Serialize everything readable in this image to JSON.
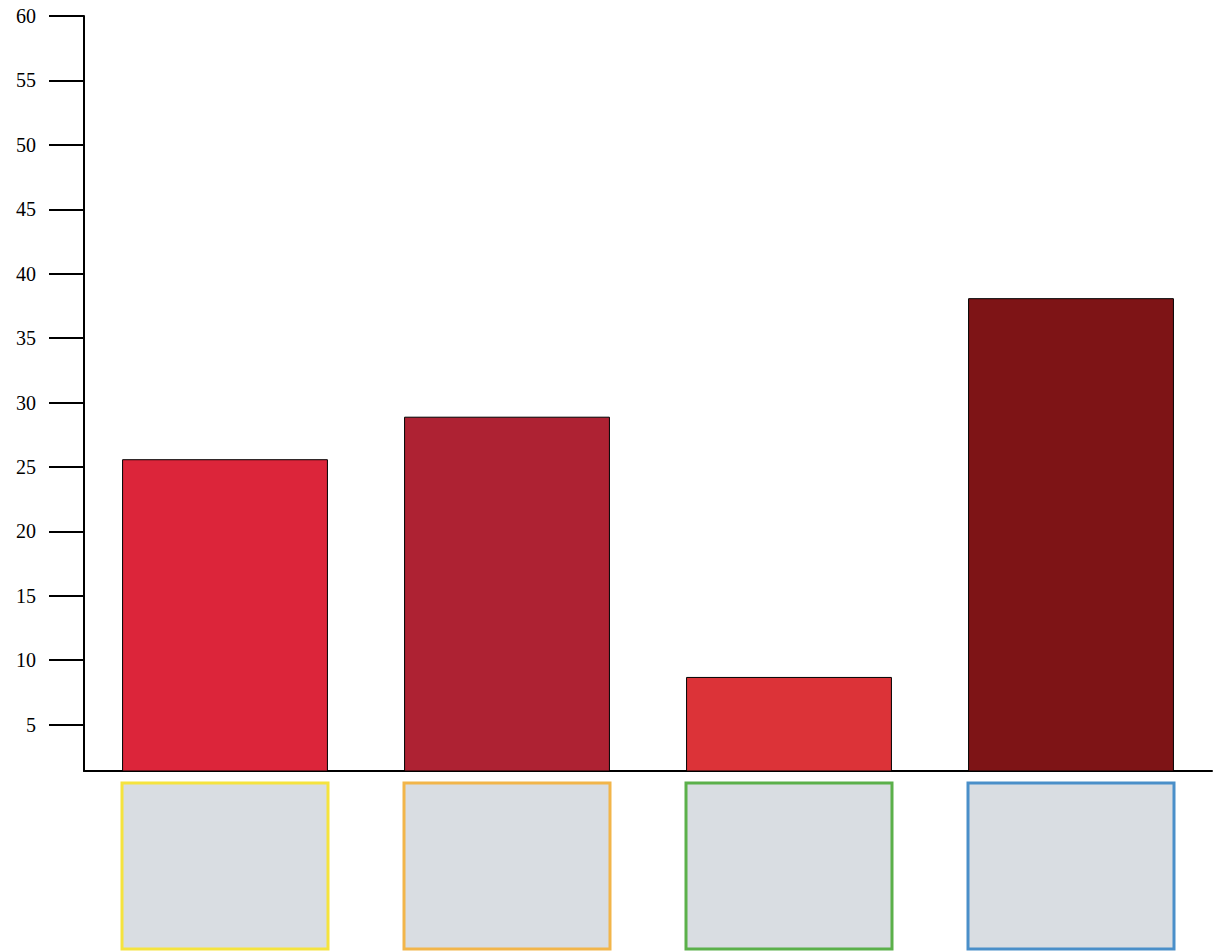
{
  "chart_data": {
    "type": "bar",
    "categories": [
      null,
      null,
      null,
      null
    ],
    "values": [
      25.6,
      28.9,
      8.7,
      38.1
    ],
    "colors": [
      "#dc253a",
      "#ae2233",
      "#dc3338",
      "#7e1416"
    ],
    "ylim": [
      1.4,
      60
    ],
    "yticks": [
      5,
      10,
      15,
      20,
      25,
      30,
      35,
      40,
      45,
      50,
      55,
      60
    ],
    "grid": false
  }
}
